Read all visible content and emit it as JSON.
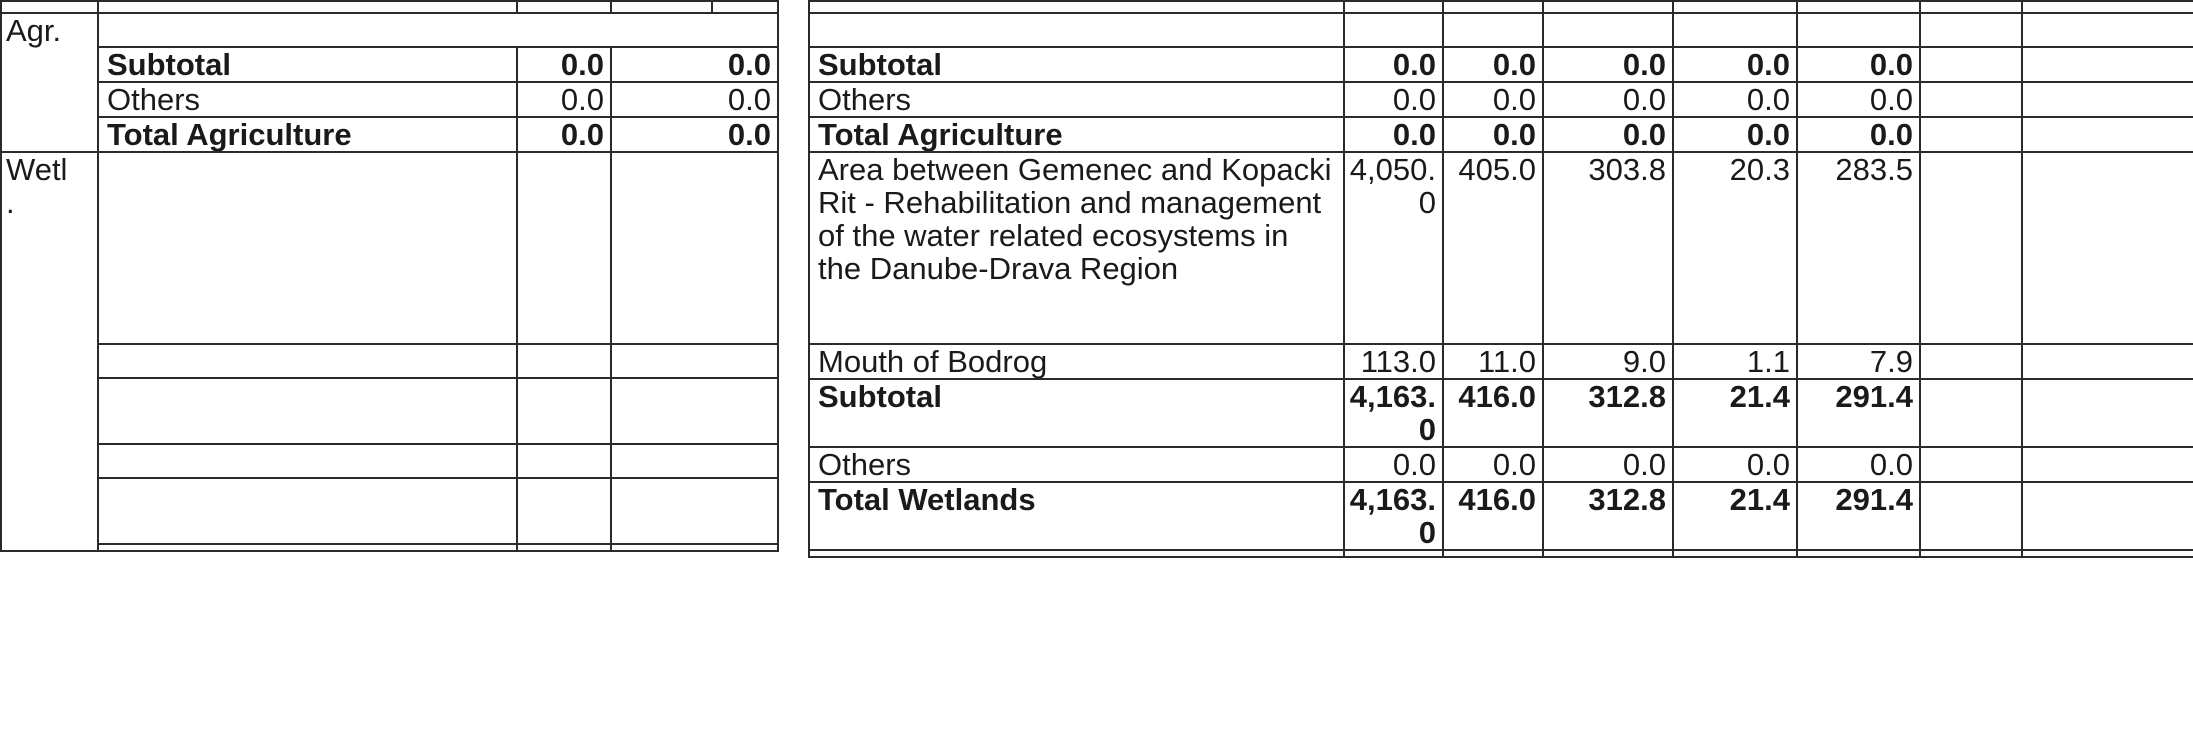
{
  "left_table": {
    "section_agr": "Agr.",
    "section_wetl": "Wetl\n.",
    "agr_rows": [
      {
        "label": "Subtotal",
        "v1": "0.0",
        "v2": "0.0"
      },
      {
        "label": "Others",
        "v1": "0.0",
        "v2": "0.0"
      },
      {
        "label": "Total Agriculture",
        "v1": "0.0",
        "v2": "0.0"
      }
    ]
  },
  "right_table": {
    "agr_rows": [
      {
        "label": "Subtotal",
        "values": [
          "0.0",
          "0.0",
          "0.0",
          "0.0",
          "0.0"
        ]
      },
      {
        "label": "Others",
        "values": [
          "0.0",
          "0.0",
          "0.0",
          "0.0",
          "0.0"
        ]
      },
      {
        "label": "Total Agriculture",
        "values": [
          "0.0",
          "0.0",
          "0.0",
          "0.0",
          "0.0"
        ]
      }
    ],
    "wetland_rows": [
      {
        "label": "Area between Gemenec and Kopacki Rit - Rehabilitation and management of the water related ecosystems in the Danube-Drava Region",
        "values": [
          "4,050.\n0",
          "405.0",
          "303.8",
          "20.3",
          "283.5"
        ]
      },
      {
        "label": "Mouth of Bodrog",
        "values": [
          "113.0",
          "11.0",
          "9.0",
          "1.1",
          "7.9"
        ]
      },
      {
        "label": "Subtotal",
        "values": [
          "4,163.\n0",
          "416.0",
          "312.8",
          "21.4",
          "291.4"
        ]
      },
      {
        "label": "Others",
        "values": [
          "0.0",
          "0.0",
          "0.0",
          "0.0",
          "0.0"
        ]
      },
      {
        "label": "Total Wetlands",
        "values": [
          "4,163.\n0",
          "416.0",
          "312.8",
          "21.4",
          "291.4"
        ]
      }
    ]
  }
}
